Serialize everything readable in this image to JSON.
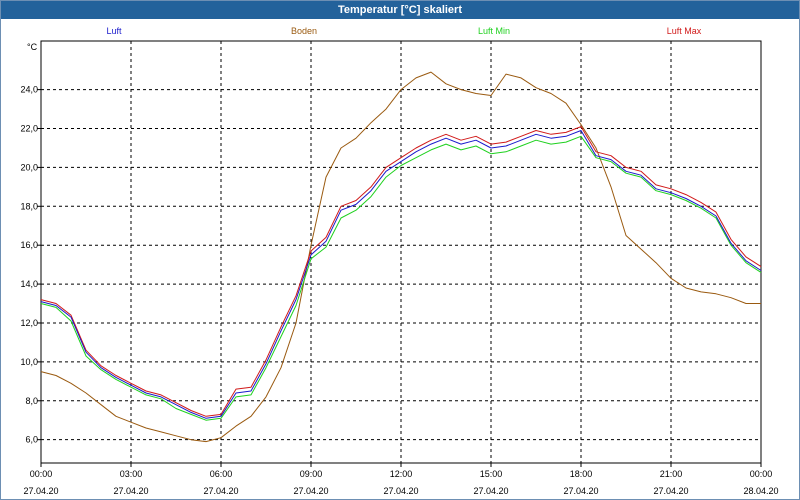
{
  "window": {
    "title": "Temperatur [°C] skaliert"
  },
  "chart_data": {
    "type": "line",
    "title": "Temperatur [°C] skaliert",
    "ylabel": "°C",
    "ylim": [
      4.8,
      26.5
    ],
    "yticks": [
      6,
      8,
      10,
      12,
      14,
      16,
      18,
      20,
      22,
      24
    ],
    "ytick_labels": [
      "6,0",
      "8,0",
      "10,0",
      "12,0",
      "14,0",
      "16,0",
      "18,0",
      "20,0",
      "22,0",
      "24,0"
    ],
    "xlim": [
      0,
      24
    ],
    "xticks": [
      0,
      3,
      6,
      9,
      12,
      15,
      18,
      21,
      24
    ],
    "xtick_times": [
      "00:00",
      "03:00",
      "06:00",
      "09:00",
      "12:00",
      "15:00",
      "18:00",
      "21:00",
      "00:00"
    ],
    "xtick_dates": [
      "27.04.20",
      "27.04.20",
      "27.04.20",
      "27.04.20",
      "27.04.20",
      "27.04.20",
      "27.04.20",
      "27.04.20",
      "28.04.20"
    ],
    "grid": true,
    "x": [
      0,
      0.5,
      1,
      1.5,
      2,
      2.5,
      3,
      3.5,
      4,
      4.5,
      5,
      5.5,
      6,
      6.5,
      7,
      7.5,
      8,
      8.5,
      9,
      9.5,
      10,
      10.5,
      11,
      11.5,
      12,
      12.5,
      13,
      13.5,
      14,
      14.5,
      15,
      15.5,
      16,
      16.5,
      17,
      17.5,
      18,
      18.5,
      19,
      19.5,
      20,
      20.5,
      21,
      21.5,
      22,
      22.5,
      23,
      23.5,
      24
    ],
    "series": [
      {
        "name": "Luft",
        "color": "#1a1acc",
        "values": [
          13.1,
          12.9,
          12.3,
          10.5,
          9.7,
          9.2,
          8.8,
          8.4,
          8.2,
          7.8,
          7.4,
          7.1,
          7.2,
          8.4,
          8.5,
          9.9,
          11.6,
          13.2,
          15.5,
          16.2,
          17.8,
          18.1,
          18.8,
          19.8,
          20.3,
          20.8,
          21.2,
          21.5,
          21.2,
          21.4,
          21.0,
          21.1,
          21.4,
          21.7,
          21.5,
          21.6,
          21.9,
          20.6,
          20.4,
          19.8,
          19.6,
          18.9,
          18.7,
          18.4,
          18.0,
          17.5,
          16.1,
          15.2,
          14.7
        ]
      },
      {
        "name": "Boden",
        "color": "#9a5a10",
        "values": [
          9.5,
          9.3,
          8.9,
          8.4,
          7.8,
          7.2,
          6.9,
          6.6,
          6.4,
          6.2,
          6.0,
          5.9,
          6.1,
          6.7,
          7.2,
          8.2,
          9.7,
          12.0,
          16.0,
          19.5,
          21.0,
          21.5,
          22.3,
          23.0,
          24.0,
          24.6,
          24.9,
          24.3,
          24.0,
          23.8,
          23.7,
          24.8,
          24.6,
          24.1,
          23.8,
          23.3,
          22.2,
          21.0,
          19.0,
          16.5,
          15.8,
          15.1,
          14.3,
          13.8,
          13.6,
          13.5,
          13.3,
          13.0,
          13.0
        ]
      },
      {
        "name": "Luft Min",
        "color": "#1fd11f",
        "values": [
          13.0,
          12.8,
          12.1,
          10.3,
          9.6,
          9.1,
          8.7,
          8.3,
          8.1,
          7.6,
          7.3,
          7.0,
          7.1,
          8.2,
          8.3,
          9.7,
          11.3,
          12.9,
          15.3,
          15.9,
          17.4,
          17.8,
          18.5,
          19.5,
          20.1,
          20.5,
          20.9,
          21.2,
          20.9,
          21.1,
          20.7,
          20.8,
          21.1,
          21.4,
          21.2,
          21.3,
          21.6,
          20.5,
          20.3,
          19.7,
          19.5,
          18.8,
          18.6,
          18.3,
          17.9,
          17.4,
          16.0,
          15.1,
          14.6
        ]
      },
      {
        "name": "Luft Max",
        "color": "#d11a1a",
        "values": [
          13.2,
          13.0,
          12.4,
          10.6,
          9.8,
          9.3,
          8.9,
          8.5,
          8.3,
          7.9,
          7.5,
          7.2,
          7.3,
          8.6,
          8.7,
          10.1,
          11.8,
          13.4,
          15.7,
          16.4,
          18.0,
          18.3,
          19.0,
          20.0,
          20.5,
          21.0,
          21.4,
          21.7,
          21.4,
          21.6,
          21.2,
          21.3,
          21.6,
          21.9,
          21.7,
          21.8,
          22.1,
          20.8,
          20.6,
          20.0,
          19.8,
          19.1,
          18.9,
          18.6,
          18.2,
          17.7,
          16.3,
          15.4,
          14.9
        ]
      }
    ]
  }
}
